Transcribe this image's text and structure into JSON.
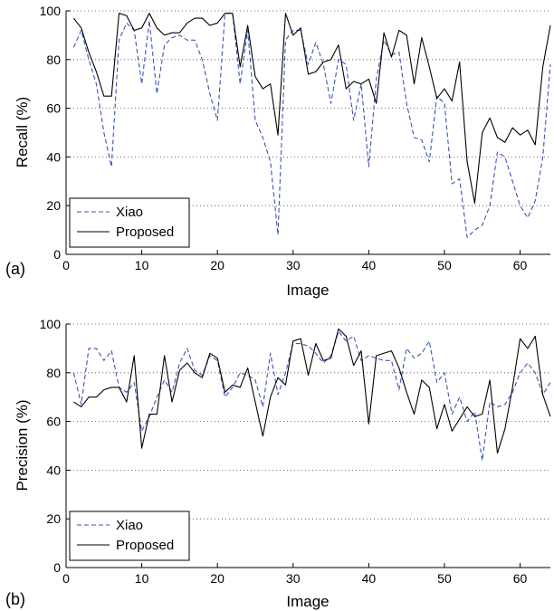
{
  "chart_data": [
    {
      "type": "line",
      "panel_label": "(a)",
      "xlabel": "Image",
      "ylabel": "Recall (%)",
      "xlim": [
        0,
        64
      ],
      "ylim": [
        0,
        100
      ],
      "xticks": [
        0,
        10,
        20,
        30,
        40,
        50,
        60
      ],
      "yticks": [
        0,
        20,
        40,
        60,
        80,
        100
      ],
      "grid": "horizontal-dotted",
      "legend": "bottom-left",
      "x": [
        1,
        2,
        3,
        4,
        5,
        6,
        7,
        8,
        9,
        10,
        11,
        12,
        13,
        14,
        15,
        16,
        17,
        18,
        19,
        20,
        21,
        22,
        23,
        24,
        25,
        26,
        27,
        28,
        29,
        30,
        31,
        32,
        33,
        34,
        35,
        36,
        37,
        38,
        39,
        40,
        41,
        42,
        43,
        44,
        45,
        46,
        47,
        48,
        49,
        50,
        51,
        52,
        53,
        54,
        55,
        56,
        57,
        58,
        59,
        60,
        61,
        62,
        63,
        64
      ],
      "series": [
        {
          "name": "Xiao",
          "style": "dashed",
          "color": "#3a55b4",
          "values": [
            85,
            92,
            80,
            70,
            50,
            36,
            88,
            95,
            92,
            70,
            96,
            66,
            86,
            89,
            90,
            88,
            88,
            80,
            66,
            55,
            99,
            99,
            70,
            92,
            55,
            48,
            38,
            8,
            88,
            92,
            92,
            78,
            87,
            78,
            62,
            80,
            78,
            55,
            70,
            36,
            72,
            88,
            82,
            83,
            62,
            48,
            47,
            38,
            65,
            62,
            29,
            31,
            7,
            10,
            12,
            20,
            42,
            40,
            30,
            20,
            15,
            22,
            40,
            78
          ]
        },
        {
          "name": "Proposed",
          "style": "solid",
          "color": "#000000",
          "values": [
            97,
            93,
            83,
            75,
            65,
            65,
            99,
            98,
            92,
            93,
            99,
            93,
            90,
            91,
            91,
            95,
            97,
            97,
            94,
            95,
            99,
            99,
            77,
            94,
            73,
            68,
            70,
            49,
            99,
            90,
            93,
            74,
            75,
            79,
            80,
            86,
            68,
            71,
            70,
            72,
            62,
            91,
            81,
            92,
            90,
            70,
            89,
            77,
            64,
            68,
            63,
            79,
            38,
            21,
            50,
            56,
            48,
            46,
            52,
            49,
            51,
            45,
            77,
            94
          ]
        }
      ]
    },
    {
      "type": "line",
      "panel_label": "(b)",
      "xlabel": "Image",
      "ylabel": "Precision (%)",
      "xlim": [
        0,
        64
      ],
      "ylim": [
        0,
        100
      ],
      "xticks": [
        0,
        10,
        20,
        30,
        40,
        50,
        60
      ],
      "yticks": [
        0,
        20,
        40,
        60,
        80,
        100
      ],
      "grid": "horizontal-dotted",
      "legend": "bottom-left",
      "x": [
        1,
        2,
        3,
        4,
        5,
        6,
        7,
        8,
        9,
        10,
        11,
        12,
        13,
        14,
        15,
        16,
        17,
        18,
        19,
        20,
        21,
        22,
        23,
        24,
        25,
        26,
        27,
        28,
        29,
        30,
        31,
        32,
        33,
        34,
        35,
        36,
        37,
        38,
        39,
        40,
        41,
        42,
        43,
        44,
        45,
        46,
        47,
        48,
        49,
        50,
        51,
        52,
        53,
        54,
        55,
        56,
        57,
        58,
        59,
        60,
        61,
        62,
        63,
        64
      ],
      "series": [
        {
          "name": "Xiao",
          "style": "dashed",
          "color": "#3a55b4",
          "values": [
            80,
            67,
            90,
            90,
            85,
            89,
            74,
            72,
            76,
            56,
            62,
            70,
            77,
            72,
            84,
            90,
            81,
            79,
            87,
            85,
            70,
            74,
            80,
            79,
            77,
            66,
            88,
            71,
            80,
            92,
            92,
            91,
            88,
            84,
            87,
            97,
            93,
            95,
            85,
            87,
            86,
            85,
            85,
            73,
            90,
            86,
            88,
            93,
            76,
            80,
            63,
            70,
            60,
            64,
            44,
            68,
            66,
            67,
            72,
            80,
            84,
            80,
            71,
            76
          ]
        },
        {
          "name": "Proposed",
          "style": "solid",
          "color": "#000000",
          "values": [
            68,
            66,
            70,
            70,
            73,
            74,
            74,
            68,
            87,
            49,
            63,
            63,
            87,
            68,
            81,
            84,
            80,
            78,
            88,
            86,
            72,
            75,
            74,
            82,
            68,
            54,
            70,
            78,
            75,
            93,
            94,
            79,
            92,
            85,
            86,
            98,
            95,
            83,
            89,
            59,
            87,
            88,
            89,
            82,
            72,
            63,
            77,
            74,
            57,
            67,
            56,
            61,
            66,
            62,
            63,
            77,
            47,
            57,
            74,
            94,
            90,
            95,
            71,
            62
          ]
        }
      ]
    }
  ]
}
